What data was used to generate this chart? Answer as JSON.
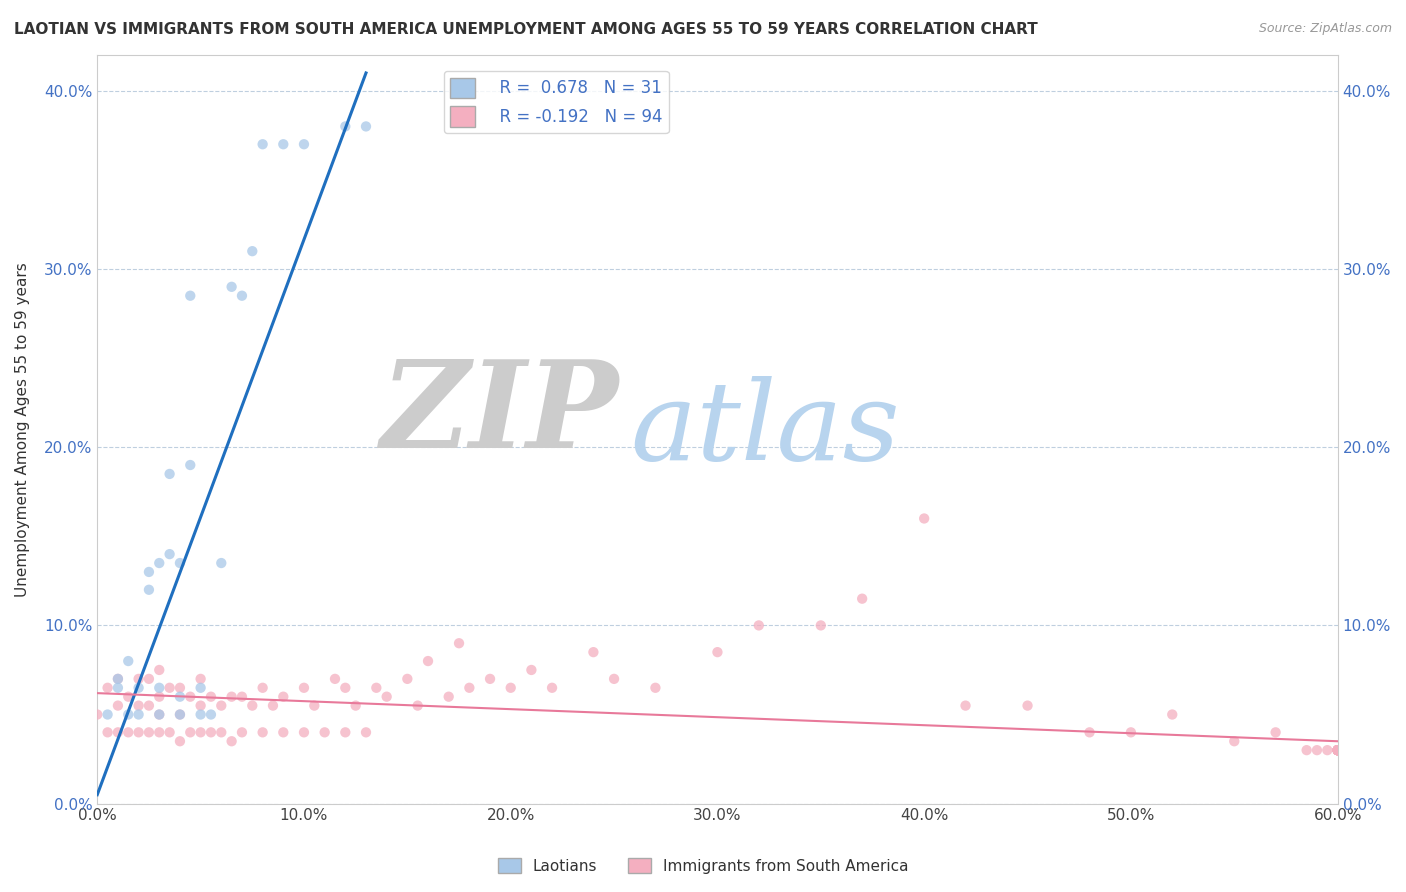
{
  "title": "LAOTIAN VS IMMIGRANTS FROM SOUTH AMERICA UNEMPLOYMENT AMONG AGES 55 TO 59 YEARS CORRELATION CHART",
  "source": "Source: ZipAtlas.com",
  "ylabel": "Unemployment Among Ages 55 to 59 years",
  "xlim": [
    0.0,
    0.6
  ],
  "ylim": [
    0.0,
    0.42
  ],
  "xticks": [
    0.0,
    0.1,
    0.2,
    0.3,
    0.4,
    0.5,
    0.6
  ],
  "xticklabels": [
    "0.0%",
    "10.0%",
    "20.0%",
    "30.0%",
    "40.0%",
    "50.0%",
    "60.0%"
  ],
  "yticks": [
    0.0,
    0.1,
    0.2,
    0.3,
    0.4
  ],
  "yticklabels": [
    "0.0%",
    "10.0%",
    "20.0%",
    "30.0%",
    "40.0%"
  ],
  "blue_color": "#a8c8e8",
  "pink_color": "#f4afc0",
  "blue_line_color": "#1f6fbf",
  "pink_line_color": "#e8799a",
  "watermark_zip": "ZIP",
  "watermark_atlas": "atlas",
  "blue_scatter_x": [
    0.005,
    0.01,
    0.01,
    0.015,
    0.015,
    0.02,
    0.02,
    0.025,
    0.025,
    0.03,
    0.03,
    0.03,
    0.035,
    0.035,
    0.04,
    0.04,
    0.04,
    0.045,
    0.045,
    0.05,
    0.05,
    0.055,
    0.06,
    0.065,
    0.07,
    0.075,
    0.08,
    0.09,
    0.1,
    0.12,
    0.13
  ],
  "blue_scatter_y": [
    0.05,
    0.065,
    0.07,
    0.05,
    0.08,
    0.05,
    0.065,
    0.12,
    0.13,
    0.05,
    0.065,
    0.135,
    0.14,
    0.185,
    0.05,
    0.06,
    0.135,
    0.19,
    0.285,
    0.05,
    0.065,
    0.05,
    0.135,
    0.29,
    0.285,
    0.31,
    0.37,
    0.37,
    0.37,
    0.38,
    0.38
  ],
  "pink_scatter_x": [
    0.0,
    0.005,
    0.005,
    0.01,
    0.01,
    0.01,
    0.015,
    0.015,
    0.02,
    0.02,
    0.02,
    0.025,
    0.025,
    0.025,
    0.03,
    0.03,
    0.03,
    0.03,
    0.035,
    0.035,
    0.04,
    0.04,
    0.04,
    0.045,
    0.045,
    0.05,
    0.05,
    0.05,
    0.055,
    0.055,
    0.06,
    0.06,
    0.065,
    0.065,
    0.07,
    0.07,
    0.075,
    0.08,
    0.08,
    0.085,
    0.09,
    0.09,
    0.1,
    0.1,
    0.105,
    0.11,
    0.115,
    0.12,
    0.12,
    0.125,
    0.13,
    0.135,
    0.14,
    0.15,
    0.155,
    0.16,
    0.17,
    0.175,
    0.18,
    0.19,
    0.2,
    0.21,
    0.22,
    0.24,
    0.25,
    0.27,
    0.3,
    0.32,
    0.35,
    0.37,
    0.4,
    0.42,
    0.45,
    0.48,
    0.5,
    0.52,
    0.55,
    0.57,
    0.585,
    0.59,
    0.595,
    0.6,
    0.6,
    0.6,
    0.6,
    0.6,
    0.6,
    0.6,
    0.6,
    0.6,
    0.6,
    0.6,
    0.6,
    0.6
  ],
  "pink_scatter_y": [
    0.05,
    0.04,
    0.065,
    0.04,
    0.055,
    0.07,
    0.04,
    0.06,
    0.04,
    0.055,
    0.07,
    0.04,
    0.055,
    0.07,
    0.04,
    0.05,
    0.06,
    0.075,
    0.04,
    0.065,
    0.035,
    0.05,
    0.065,
    0.04,
    0.06,
    0.04,
    0.055,
    0.07,
    0.04,
    0.06,
    0.04,
    0.055,
    0.035,
    0.06,
    0.04,
    0.06,
    0.055,
    0.04,
    0.065,
    0.055,
    0.04,
    0.06,
    0.04,
    0.065,
    0.055,
    0.04,
    0.07,
    0.04,
    0.065,
    0.055,
    0.04,
    0.065,
    0.06,
    0.07,
    0.055,
    0.08,
    0.06,
    0.09,
    0.065,
    0.07,
    0.065,
    0.075,
    0.065,
    0.085,
    0.07,
    0.065,
    0.085,
    0.1,
    0.1,
    0.115,
    0.16,
    0.055,
    0.055,
    0.04,
    0.04,
    0.05,
    0.035,
    0.04,
    0.03,
    0.03,
    0.03,
    0.03,
    0.03,
    0.03,
    0.03,
    0.03,
    0.03,
    0.03,
    0.03,
    0.03,
    0.03,
    0.03,
    0.03,
    0.03
  ],
  "blue_trend_x": [
    0.0,
    0.13
  ],
  "blue_trend_y": [
    0.005,
    0.41
  ],
  "pink_trend_x": [
    0.0,
    0.6
  ],
  "pink_trend_y": [
    0.062,
    0.035
  ]
}
